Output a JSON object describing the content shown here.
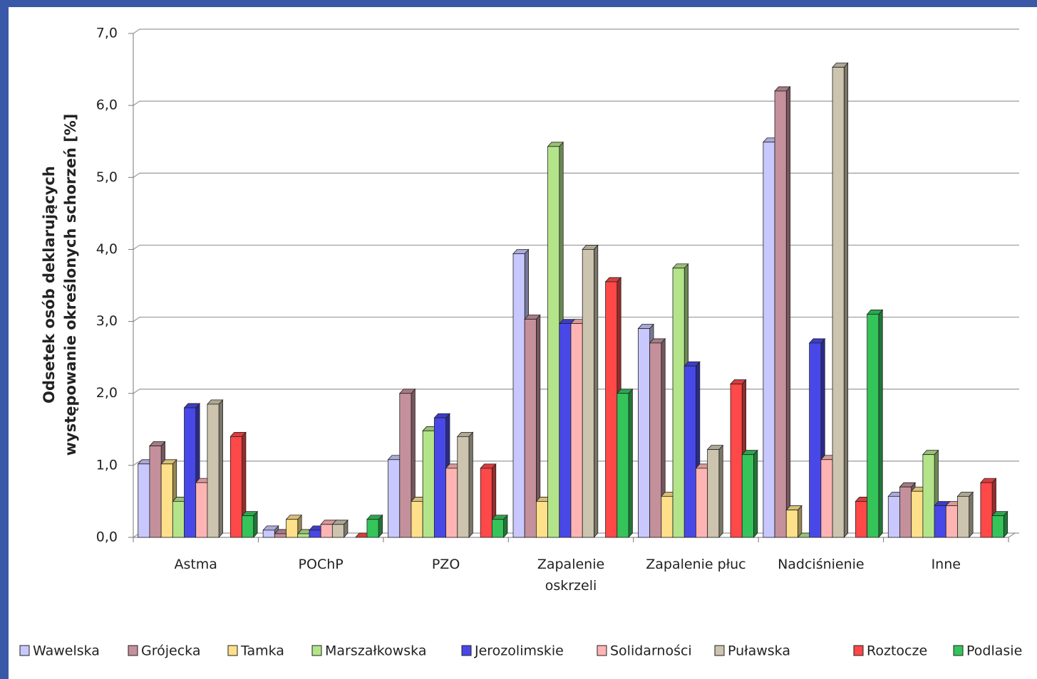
{
  "chart_data": {
    "type": "bar3d",
    "ylabel": [
      "Odsetek osób deklarujących",
      "występowanie określonych schorzeń [%]"
    ],
    "categories": [
      "Astma",
      "POChP",
      "PZO",
      "Zapalenie oskrzeli",
      "Zapalenie płuc",
      "Nadciśnienie",
      "Inne"
    ],
    "series": [
      {
        "name": "Wawelska",
        "color": "#c8c8ff",
        "values": [
          1.02,
          0.1,
          1.08,
          3.94,
          2.9,
          5.49,
          0.57
        ]
      },
      {
        "name": "Grójecka",
        "color": "#c4909c",
        "values": [
          1.27,
          0.05,
          2.0,
          3.03,
          2.7,
          6.2,
          0.7
        ]
      },
      {
        "name": "Tamka",
        "color": "#ffe08a",
        "values": [
          1.02,
          0.25,
          0.5,
          0.5,
          0.57,
          0.38,
          0.64
        ]
      },
      {
        "name": "Marszałkowska",
        "color": "#b4e48a",
        "values": [
          0.5,
          0.05,
          1.48,
          5.43,
          3.74,
          0.0,
          1.15
        ]
      },
      {
        "name": "Jerozolimskie",
        "color": "#4848e8",
        "values": [
          1.8,
          0.1,
          1.66,
          2.97,
          2.38,
          2.7,
          0.44
        ]
      },
      {
        "name": "Solidarności",
        "color": "#ffb4b4",
        "values": [
          0.76,
          0.18,
          0.96,
          2.97,
          0.96,
          1.08,
          0.44
        ]
      },
      {
        "name": "Puławska",
        "color": "#ccc4ae",
        "values": [
          1.85,
          0.18,
          1.4,
          4.0,
          1.22,
          6.53,
          0.57
        ]
      },
      {
        "name": "Roztocze",
        "color": "#ff4848",
        "values": [
          1.4,
          0.0,
          0.96,
          3.55,
          2.13,
          0.5,
          0.76
        ]
      },
      {
        "name": "Podlasie",
        "color": "#34c45a",
        "values": [
          0.3,
          0.25,
          0.25,
          2.0,
          1.15,
          3.1,
          0.3
        ]
      }
    ],
    "ylim": [
      0,
      7
    ],
    "yticks": [
      {
        "value": 0,
        "label": "0,0"
      },
      {
        "value": 1,
        "label": "1,0"
      },
      {
        "value": 2,
        "label": "2,0"
      },
      {
        "value": 3,
        "label": "3,0"
      },
      {
        "value": 4,
        "label": "4,0"
      },
      {
        "value": 5,
        "label": "5,0"
      },
      {
        "value": 6,
        "label": "6,0"
      },
      {
        "value": 7,
        "label": "7,0"
      }
    ],
    "grid": true
  }
}
